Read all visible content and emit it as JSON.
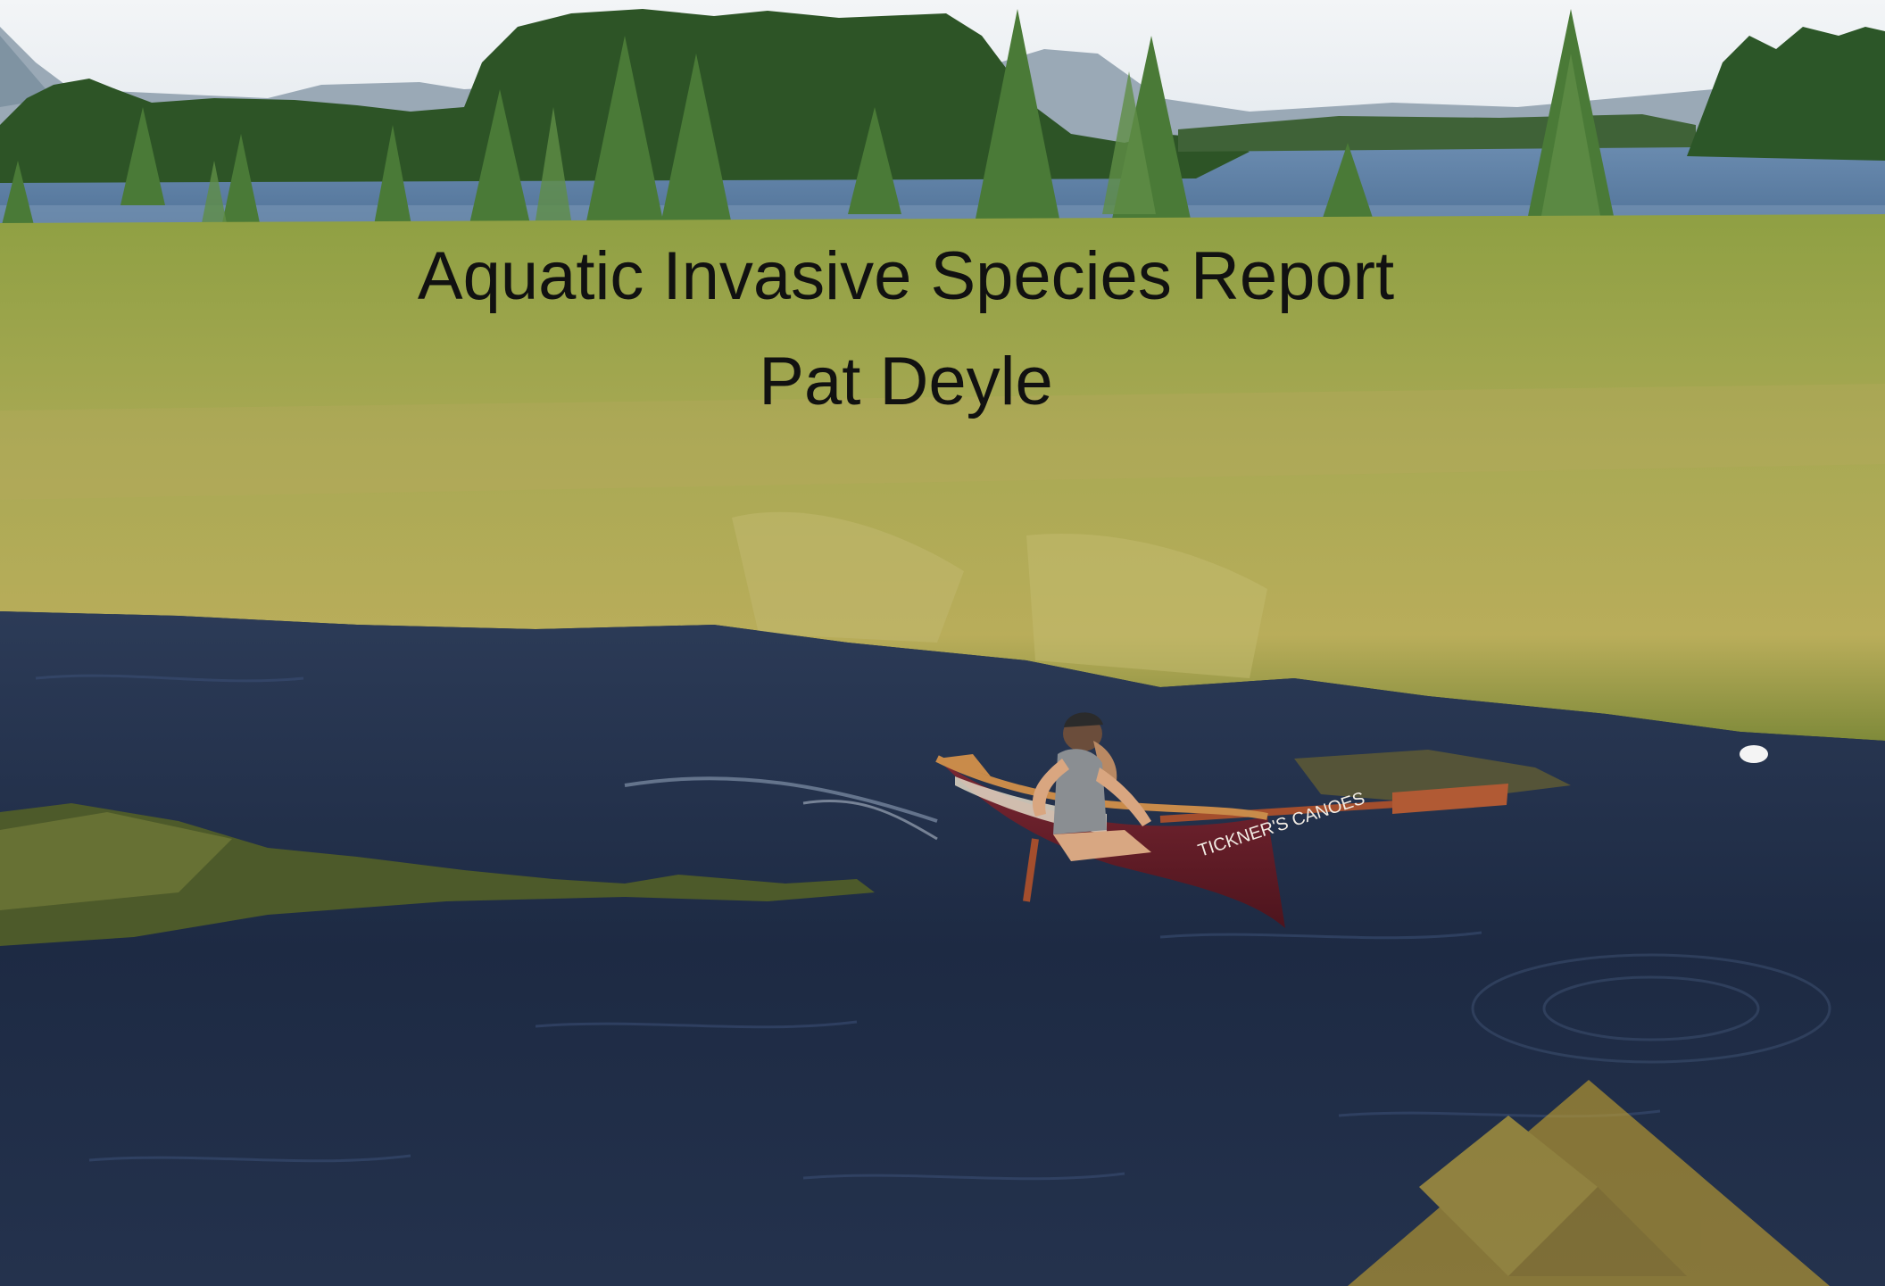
{
  "slide": {
    "title": "Aquatic Invasive Species Report",
    "author": "Pat Deyle"
  },
  "photo": {
    "canoe_text": "TICKNER'S CANOES"
  },
  "colors": {
    "sky": "#e9eef2",
    "lake": "#5c7ea3",
    "forest": "#2f5a2a",
    "marsh": "#a7a552",
    "river": "#1f2d45",
    "canoe_hull": "#6a1f2a",
    "logo_gold": "#c9a52e"
  }
}
